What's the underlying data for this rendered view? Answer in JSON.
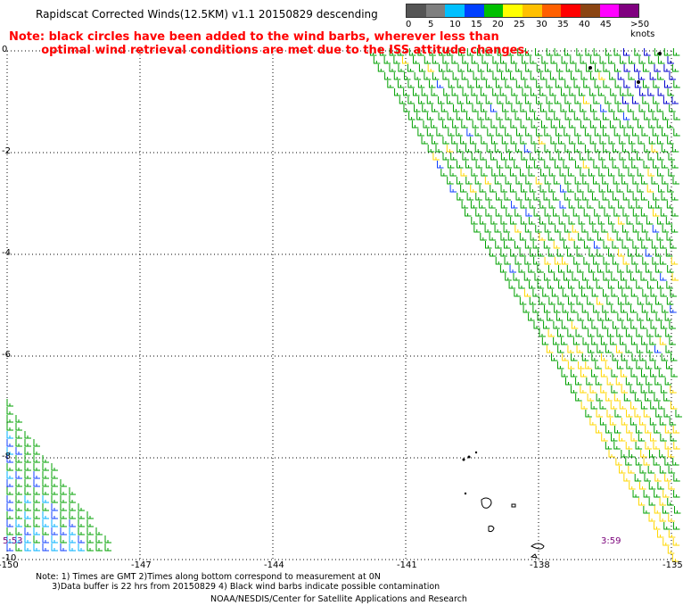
{
  "title": "Rapidscat Corrected Winds(12.5KM) v1.1 20150829 descending",
  "note": "Note: black circles have been added to the wind barbs, wherever less than\n        optimal wind retrieval conditions are met due to the ISS attitude changes.",
  "legend": {
    "labels": [
      "0",
      "5",
      "10",
      "15",
      "20",
      "25",
      "30",
      "35",
      "40",
      "45",
      ">50 knots"
    ],
    "colors": [
      "#555555",
      "#7f7f7f",
      "#00c0ff",
      "#0040ff",
      "#00c000",
      "#ffff00",
      "#ffc000",
      "#ff6000",
      "#ff0000",
      "#8b4513",
      "#ff00ff",
      "#800080"
    ]
  },
  "lat_labels": [
    "0",
    "-2",
    "-4",
    "-6",
    "-8",
    "-10"
  ],
  "lon_labels": [
    "-150",
    "-147",
    "-144",
    "-141",
    "-138",
    "-135"
  ],
  "timestamps": {
    "left": "5:53",
    "right": "3:59"
  },
  "footer": "Note: 1) Times are GMT 2)Times along bottom correspond to measurement at 0N\n      3)Data buffer is 22 hrs from 20150829 4) Black wind barbs indicate possible contamination",
  "credit": "NOAA/NESDIS/Center for Satellite Applications and Research"
}
